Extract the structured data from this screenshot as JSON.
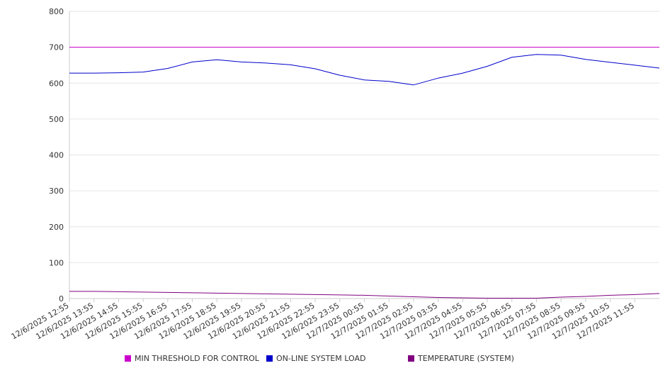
{
  "chart_data": {
    "type": "line",
    "ylim": [
      0,
      800
    ],
    "y_ticks": [
      0,
      100,
      200,
      300,
      400,
      500,
      600,
      700,
      800
    ],
    "grid": "horizontal",
    "legend_position": "bottom",
    "x_tick_labels": [
      "12/6/2025 12:55",
      "12/6/2025 13:55",
      "12/6/2025 14:55",
      "12/6/2025 15:55",
      "12/6/2025 16:55",
      "12/6/2025 17:55",
      "12/6/2025 18:55",
      "12/6/2025 19:55",
      "12/6/2025 20:55",
      "12/6/2025 21:55",
      "12/6/2025 22:55",
      "12/6/2025 23:55",
      "12/7/2025 00:55",
      "12/7/2025 01:55",
      "12/7/2025 02:55",
      "12/7/2025 03:55",
      "12/7/2025 04:55",
      "12/7/2025 05:55",
      "12/7/2025 06:55",
      "12/7/2025 07:55",
      "12/7/2025 08:55",
      "12/7/2025 09:55",
      "12/7/2025 10:55",
      "12/7/2025 11:55"
    ],
    "series": [
      {
        "name": "MIN THRESHOLD FOR CONTROL",
        "color": "#cc00cc",
        "values": [
          700,
          700,
          700,
          700,
          700,
          700,
          700,
          700,
          700,
          700,
          700,
          700,
          700,
          700,
          700,
          700,
          700,
          700,
          700,
          700,
          700,
          700,
          700,
          700,
          700
        ]
      },
      {
        "name": "ON-LINE SYSTEM LOAD",
        "color": "#0000cc",
        "values": [
          628,
          628,
          629,
          631,
          641,
          659,
          665,
          659,
          656,
          651,
          640,
          622,
          609,
          605,
          595,
          614,
          628,
          647,
          672,
          680,
          678,
          666,
          658,
          650,
          642
        ]
      },
      {
        "name": "TEMPERATURE (SYSTEM)",
        "color": "#800080",
        "values": [
          20,
          20,
          19,
          18,
          17,
          16,
          15,
          14,
          13,
          12,
          11,
          10,
          9,
          7,
          5,
          3,
          2,
          1,
          1,
          1,
          4,
          6,
          9,
          11,
          14
        ]
      }
    ]
  }
}
